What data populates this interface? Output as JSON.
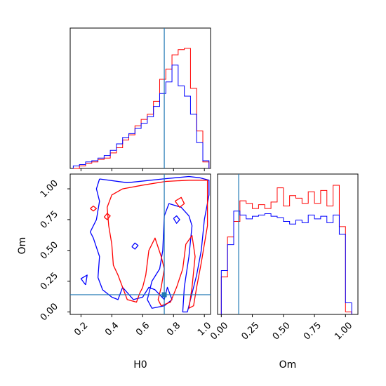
{
  "colors": {
    "series_red": "#ff0000",
    "series_blue": "#0000ff",
    "truth_line": "#1f77b4",
    "axis": "#000000"
  },
  "chart_data": [
    {
      "panel": "H0 marginal",
      "type": "step-histogram",
      "x_range": [
        0.13,
        1.04
      ],
      "bin_edges": [
        0.15,
        0.19,
        0.23,
        0.27,
        0.31,
        0.35,
        0.39,
        0.43,
        0.47,
        0.51,
        0.55,
        0.59,
        0.63,
        0.67,
        0.71,
        0.75,
        0.79,
        0.83,
        0.87,
        0.91,
        0.95,
        0.99,
        1.03
      ],
      "series": [
        {
          "color": "red",
          "values": [
            0.0,
            0.02,
            0.04,
            0.05,
            0.07,
            0.08,
            0.12,
            0.16,
            0.22,
            0.26,
            0.33,
            0.38,
            0.42,
            0.52,
            0.69,
            0.77,
            0.88,
            0.92,
            0.93,
            0.62,
            0.29,
            0.05
          ]
        },
        {
          "color": "blue",
          "values": [
            0.02,
            0.03,
            0.05,
            0.06,
            0.08,
            0.1,
            0.14,
            0.19,
            0.24,
            0.27,
            0.31,
            0.35,
            0.4,
            0.48,
            0.58,
            0.67,
            0.8,
            0.64,
            0.56,
            0.42,
            0.2,
            0.06
          ]
        }
      ],
      "truth": 0.74
    },
    {
      "panel": "Om marginal",
      "type": "step-histogram",
      "x_range": [
        -0.03,
        1.1
      ],
      "bin_edges": [
        0.0,
        0.05,
        0.1,
        0.15,
        0.2,
        0.25,
        0.3,
        0.35,
        0.4,
        0.45,
        0.5,
        0.55,
        0.6,
        0.65,
        0.7,
        0.75,
        0.8,
        0.85,
        0.9,
        0.95,
        1.0,
        1.05
      ],
      "series": [
        {
          "color": "red",
          "values": [
            0.29,
            0.6,
            0.72,
            0.88,
            0.86,
            0.82,
            0.85,
            0.82,
            0.87,
            0.98,
            0.84,
            0.92,
            0.9,
            0.86,
            0.95,
            0.86,
            0.96,
            0.84,
            1.0,
            0.68,
            0.02
          ]
        },
        {
          "color": "blue",
          "values": [
            0.34,
            0.54,
            0.8,
            0.77,
            0.74,
            0.76,
            0.77,
            0.78,
            0.76,
            0.75,
            0.72,
            0.7,
            0.73,
            0.71,
            0.77,
            0.74,
            0.76,
            0.71,
            0.77,
            0.62,
            0.09
          ]
        }
      ],
      "truth": 0.14
    },
    {
      "panel": "H0 vs Om",
      "type": "contour",
      "xlabel": "H0",
      "ylabel": "Om",
      "xlim": [
        0.13,
        1.04
      ],
      "ylim": [
        -0.02,
        1.12
      ],
      "x_ticks": [
        "0.2",
        "0.4",
        "0.6",
        "0.8",
        "1.0"
      ],
      "x_tick_values": [
        0.2,
        0.4,
        0.6,
        0.8,
        1.0
      ],
      "y_ticks": [
        "0.00",
        "0.25",
        "0.50",
        "0.75",
        "1.00"
      ],
      "y_tick_values": [
        0.0,
        0.25,
        0.5,
        0.75,
        1.0
      ],
      "truth": [
        0.74,
        0.14
      ],
      "contours": [
        {
          "color": "blue",
          "points": [
            [
              0.32,
              1.08
            ],
            [
              0.5,
              1.05
            ],
            [
              0.73,
              1.08
            ],
            [
              0.9,
              1.1
            ],
            [
              0.97,
              1.09
            ],
            [
              1.03,
              1.07
            ],
            [
              1.03,
              0.95
            ],
            [
              1.0,
              0.75
            ],
            [
              0.98,
              0.5
            ],
            [
              0.95,
              0.3
            ],
            [
              0.91,
              0.1
            ],
            [
              0.89,
              0.0
            ],
            [
              0.86,
              0.0
            ],
            [
              0.87,
              0.2
            ],
            [
              0.9,
              0.45
            ],
            [
              0.92,
              0.7
            ],
            [
              0.9,
              0.78
            ],
            [
              0.85,
              0.85
            ],
            [
              0.77,
              0.88
            ],
            [
              0.74,
              0.78
            ],
            [
              0.73,
              0.5
            ],
            [
              0.71,
              0.35
            ],
            [
              0.66,
              0.25
            ],
            [
              0.63,
              0.1
            ],
            [
              0.66,
              0.03
            ],
            [
              0.74,
              0.05
            ],
            [
              0.79,
              0.1
            ],
            [
              0.76,
              0.2
            ],
            [
              0.74,
              0.1
            ],
            [
              0.68,
              0.18
            ],
            [
              0.64,
              0.2
            ],
            [
              0.6,
              0.12
            ],
            [
              0.54,
              0.1
            ],
            [
              0.47,
              0.2
            ],
            [
              0.44,
              0.1
            ],
            [
              0.4,
              0.12
            ],
            [
              0.34,
              0.18
            ],
            [
              0.31,
              0.28
            ],
            [
              0.32,
              0.45
            ],
            [
              0.28,
              0.6
            ],
            [
              0.26,
              0.65
            ],
            [
              0.3,
              0.75
            ],
            [
              0.32,
              0.9
            ],
            [
              0.3,
              1.0
            ],
            [
              0.32,
              1.08
            ]
          ]
        },
        {
          "color": "red",
          "points": [
            [
              0.47,
              1.0
            ],
            [
              0.6,
              1.03
            ],
            [
              0.75,
              1.06
            ],
            [
              0.9,
              1.07
            ],
            [
              1.02,
              1.07
            ],
            [
              1.02,
              0.7
            ],
            [
              0.98,
              0.4
            ],
            [
              0.95,
              0.2
            ],
            [
              0.93,
              0.05
            ],
            [
              0.9,
              0.03
            ],
            [
              0.92,
              0.2
            ],
            [
              0.94,
              0.45
            ],
            [
              0.92,
              0.62
            ],
            [
              0.88,
              0.55
            ],
            [
              0.86,
              0.35
            ],
            [
              0.82,
              0.2
            ],
            [
              0.78,
              0.08
            ],
            [
              0.72,
              0.05
            ],
            [
              0.7,
              0.1
            ],
            [
              0.72,
              0.2
            ],
            [
              0.74,
              0.35
            ],
            [
              0.72,
              0.45
            ],
            [
              0.68,
              0.6
            ],
            [
              0.64,
              0.5
            ],
            [
              0.62,
              0.3
            ],
            [
              0.6,
              0.2
            ],
            [
              0.58,
              0.15
            ],
            [
              0.56,
              0.08
            ],
            [
              0.5,
              0.1
            ],
            [
              0.47,
              0.2
            ],
            [
              0.44,
              0.3
            ],
            [
              0.41,
              0.38
            ],
            [
              0.4,
              0.55
            ],
            [
              0.38,
              0.7
            ],
            [
              0.37,
              0.85
            ],
            [
              0.4,
              0.95
            ],
            [
              0.47,
              1.0
            ]
          ]
        },
        {
          "color": "blue",
          "points": [
            [
              0.23,
              0.22
            ],
            [
              0.2,
              0.27
            ],
            [
              0.24,
              0.3
            ],
            [
              0.23,
              0.22
            ]
          ]
        },
        {
          "color": "red",
          "points": [
            [
              0.26,
              0.84
            ],
            [
              0.28,
              0.82
            ],
            [
              0.3,
              0.84
            ],
            [
              0.28,
              0.86
            ],
            [
              0.26,
              0.84
            ]
          ]
        },
        {
          "color": "red",
          "points": [
            [
              0.35,
              0.77
            ],
            [
              0.37,
              0.75
            ],
            [
              0.39,
              0.78
            ],
            [
              0.37,
              0.8
            ],
            [
              0.35,
              0.77
            ]
          ]
        },
        {
          "color": "blue",
          "points": [
            [
              0.53,
              0.53
            ],
            [
              0.55,
              0.51
            ],
            [
              0.57,
              0.54
            ],
            [
              0.55,
              0.56
            ],
            [
              0.53,
              0.53
            ]
          ]
        },
        {
          "color": "red",
          "points": [
            [
              0.81,
              0.9
            ],
            [
              0.84,
              0.85
            ],
            [
              0.87,
              0.88
            ],
            [
              0.85,
              0.93
            ],
            [
              0.81,
              0.9
            ]
          ]
        },
        {
          "color": "blue",
          "points": [
            [
              0.8,
              0.76
            ],
            [
              0.82,
              0.72
            ],
            [
              0.84,
              0.75
            ],
            [
              0.82,
              0.78
            ],
            [
              0.8,
              0.76
            ]
          ]
        }
      ]
    },
    {
      "panel": "Om axis (marginal)",
      "xlabel": "Om",
      "x_ticks": [
        "0.00",
        "0.25",
        "0.50",
        "0.75",
        "1.00"
      ],
      "x_tick_values": [
        0.0,
        0.25,
        0.5,
        0.75,
        1.0
      ]
    }
  ]
}
